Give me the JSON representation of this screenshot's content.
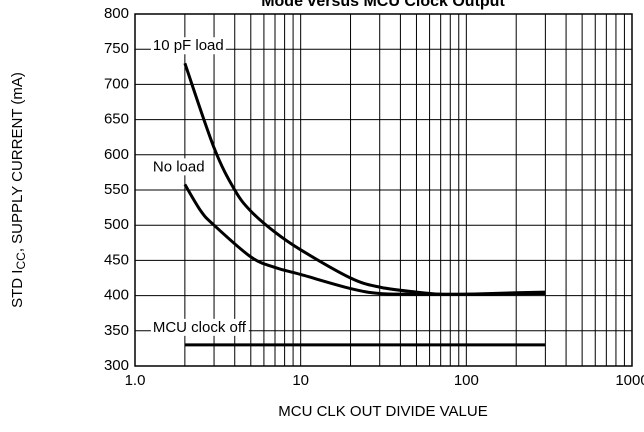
{
  "chart_data": {
    "type": "line",
    "title": "Mode versus MCU Clock Output",
    "x_label": "MCU CLK OUT DIVIDE VALUE",
    "y_label": [
      "STD I",
      "CC",
      ", SUPPLY CURRENT (mA)"
    ],
    "log_x": true,
    "grid": true,
    "minor_grid": true,
    "xlim": [
      1,
      1000
    ],
    "xticks": [
      {
        "value": 1,
        "label": "1.0"
      },
      10,
      100,
      1000
    ],
    "ylim": [
      300,
      800
    ],
    "yticks": [
      300,
      350,
      400,
      450,
      500,
      550,
      600,
      650,
      700,
      750,
      800
    ],
    "series": [
      {
        "name": "10 pF load",
        "color": "#000000",
        "x": [
          2,
          3,
          4,
          5,
          7,
          10,
          20,
          30,
          50,
          70,
          100,
          200,
          300
        ],
        "values": [
          730,
          610,
          550,
          520,
          490,
          465,
          425,
          412,
          405,
          402,
          402,
          404,
          405
        ]
      },
      {
        "name": "No load",
        "color": "#000000",
        "x": [
          2,
          2.5,
          3,
          5,
          7,
          10,
          20,
          30,
          50,
          100,
          300
        ],
        "values": [
          558,
          520,
          500,
          455,
          440,
          430,
          410,
          403,
          402,
          402,
          403
        ]
      },
      {
        "name": "MCU clock off",
        "color": "#000000",
        "x": [
          2,
          300
        ],
        "values": [
          330,
          330
        ]
      }
    ]
  }
}
